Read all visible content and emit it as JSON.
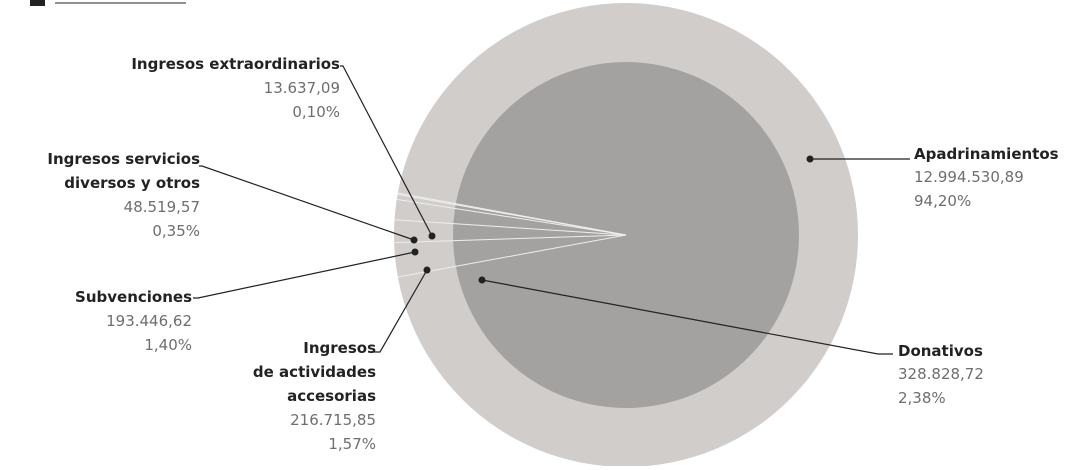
{
  "chart_data": {
    "type": "pie",
    "title": "",
    "slices": [
      {
        "name": "Apadrinamientos",
        "value": "12.994.530,89",
        "pct": "94,20%",
        "percent": 94.2
      },
      {
        "name": "Donativos",
        "value": "328.828,72",
        "pct": "2,38%",
        "percent": 2.38
      },
      {
        "name": "Ingresos de actividades accesorias",
        "value": "216.715,85",
        "pct": "1,57%",
        "percent": 1.57
      },
      {
        "name": "Subvenciones",
        "value": "193.446,62",
        "pct": "1,40%",
        "percent": 1.4
      },
      {
        "name": "Ingresos servicios diversos y otros",
        "value": "48.519,57",
        "pct": "0,35%",
        "percent": 0.35
      },
      {
        "name": "Ingresos extraordinarios",
        "value": "13.637,09",
        "pct": "0,10%",
        "percent": 0.1
      }
    ],
    "colors": {
      "outer": "#d0cdcb",
      "inner": "#a3a2a0",
      "leader": "#222222",
      "separator": "#eeeeee"
    }
  },
  "labels": {
    "apadrinamientos": {
      "name": "Apadrinamientos",
      "value": "12.994.530,89",
      "pct": "94,20%"
    },
    "donativos": {
      "name": "Donativos",
      "value": "328.828,72",
      "pct": "2,38%"
    },
    "actividades": {
      "line1": "Ingresos",
      "line2": "de actividades",
      "line3": "accesorias",
      "value": "216.715,85",
      "pct": "1,57%"
    },
    "subvenciones": {
      "name": "Subvenciones",
      "value": "193.446,62",
      "pct": "1,40%"
    },
    "servicios": {
      "line1": "Ingresos servicios",
      "line2": "diversos y otros",
      "value": "48.519,57",
      "pct": "0,35%"
    },
    "extraordinarios": {
      "name": "Ingresos extraordinarios",
      "value": "13.637,09",
      "pct": "0,10%"
    }
  }
}
